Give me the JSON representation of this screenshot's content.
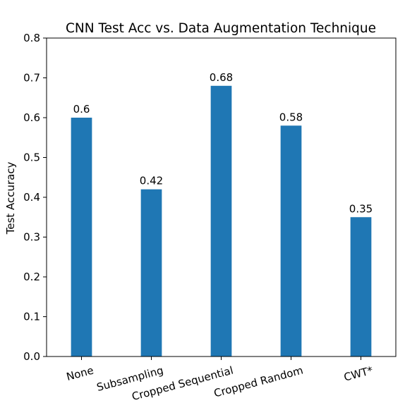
{
  "chart_data": {
    "type": "bar",
    "title": "CNN Test Acc vs. Data Augmentation Technique",
    "xlabel": "",
    "ylabel": "Test Accuracy",
    "categories": [
      "None",
      "Subsampling",
      "Cropped Sequential",
      "Cropped Random",
      "CWT*"
    ],
    "values": [
      0.6,
      0.42,
      0.68,
      0.58,
      0.35
    ],
    "data_labels": [
      "0.6",
      "0.42",
      "0.68",
      "0.58",
      "0.35"
    ],
    "ylim": [
      0,
      0.8
    ],
    "yticks": [
      "0.0",
      "0.1",
      "0.2",
      "0.3",
      "0.4",
      "0.5",
      "0.6",
      "0.7",
      "0.8"
    ],
    "grid": false,
    "bar_color": "#1f77b4",
    "xtick_rotation": 15
  }
}
